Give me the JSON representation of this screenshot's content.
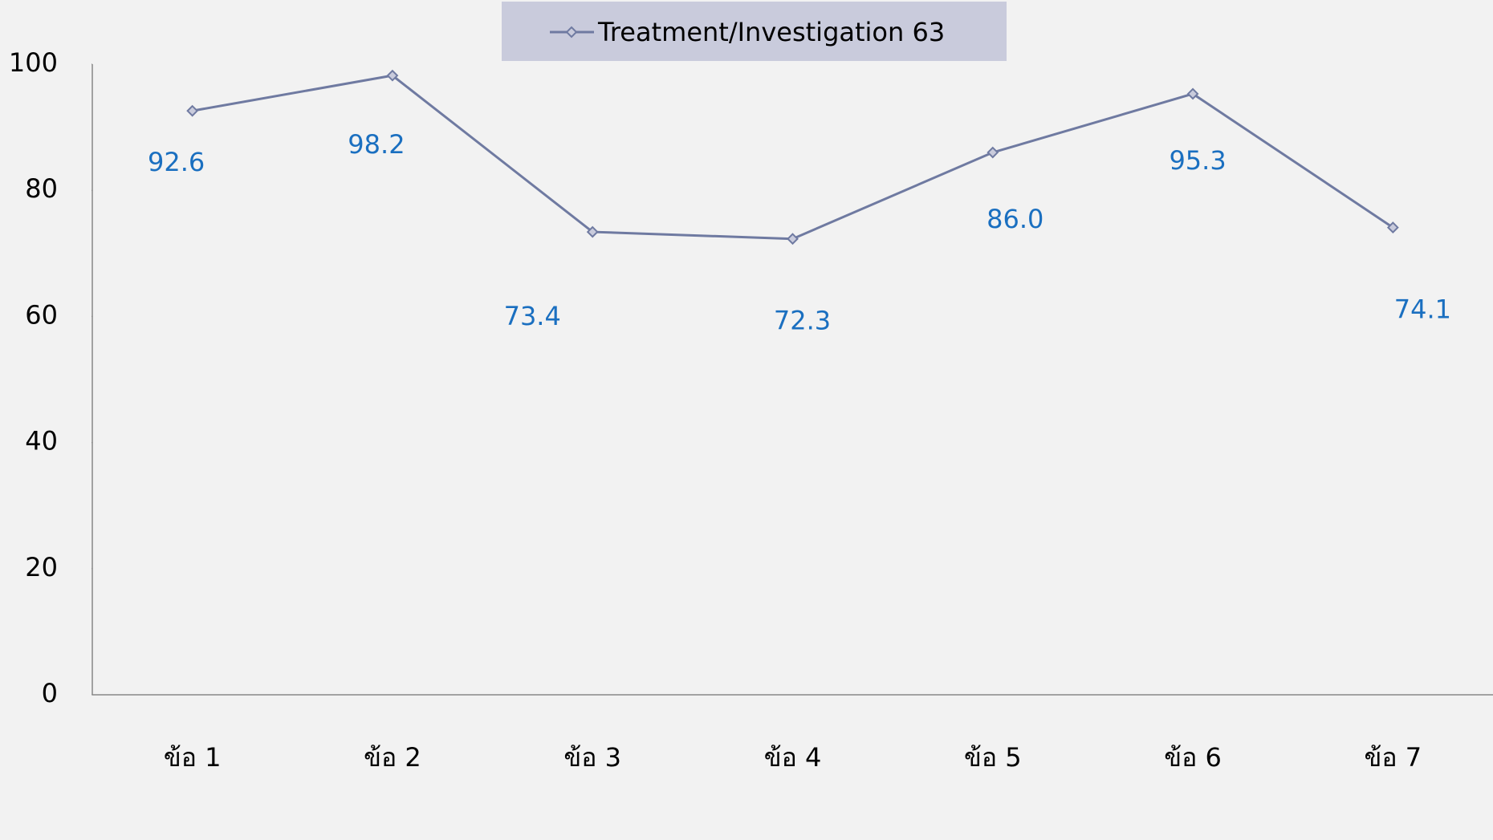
{
  "chart_data": {
    "type": "line",
    "categories": [
      "ข้อ 1",
      "ข้อ 2",
      "ข้อ 3",
      "ข้อ 4",
      "ข้อ 5",
      "ข้อ 6",
      "ข้อ 7"
    ],
    "series": [
      {
        "name": "Treatment/Investigation 63",
        "color": "#6f7aa1",
        "values": [
          92.6,
          98.2,
          73.4,
          72.3,
          86.0,
          95.3,
          74.1
        ],
        "value_labels": [
          "92.6",
          "98.2",
          "73.4",
          "72.3",
          "86.0",
          "95.3",
          "74.1"
        ]
      }
    ],
    "ylim": [
      0,
      100
    ],
    "yticks": [
      0,
      20,
      40,
      60,
      80,
      100
    ],
    "grid": false,
    "legend": "top",
    "label_color": "#1a6fc0"
  }
}
